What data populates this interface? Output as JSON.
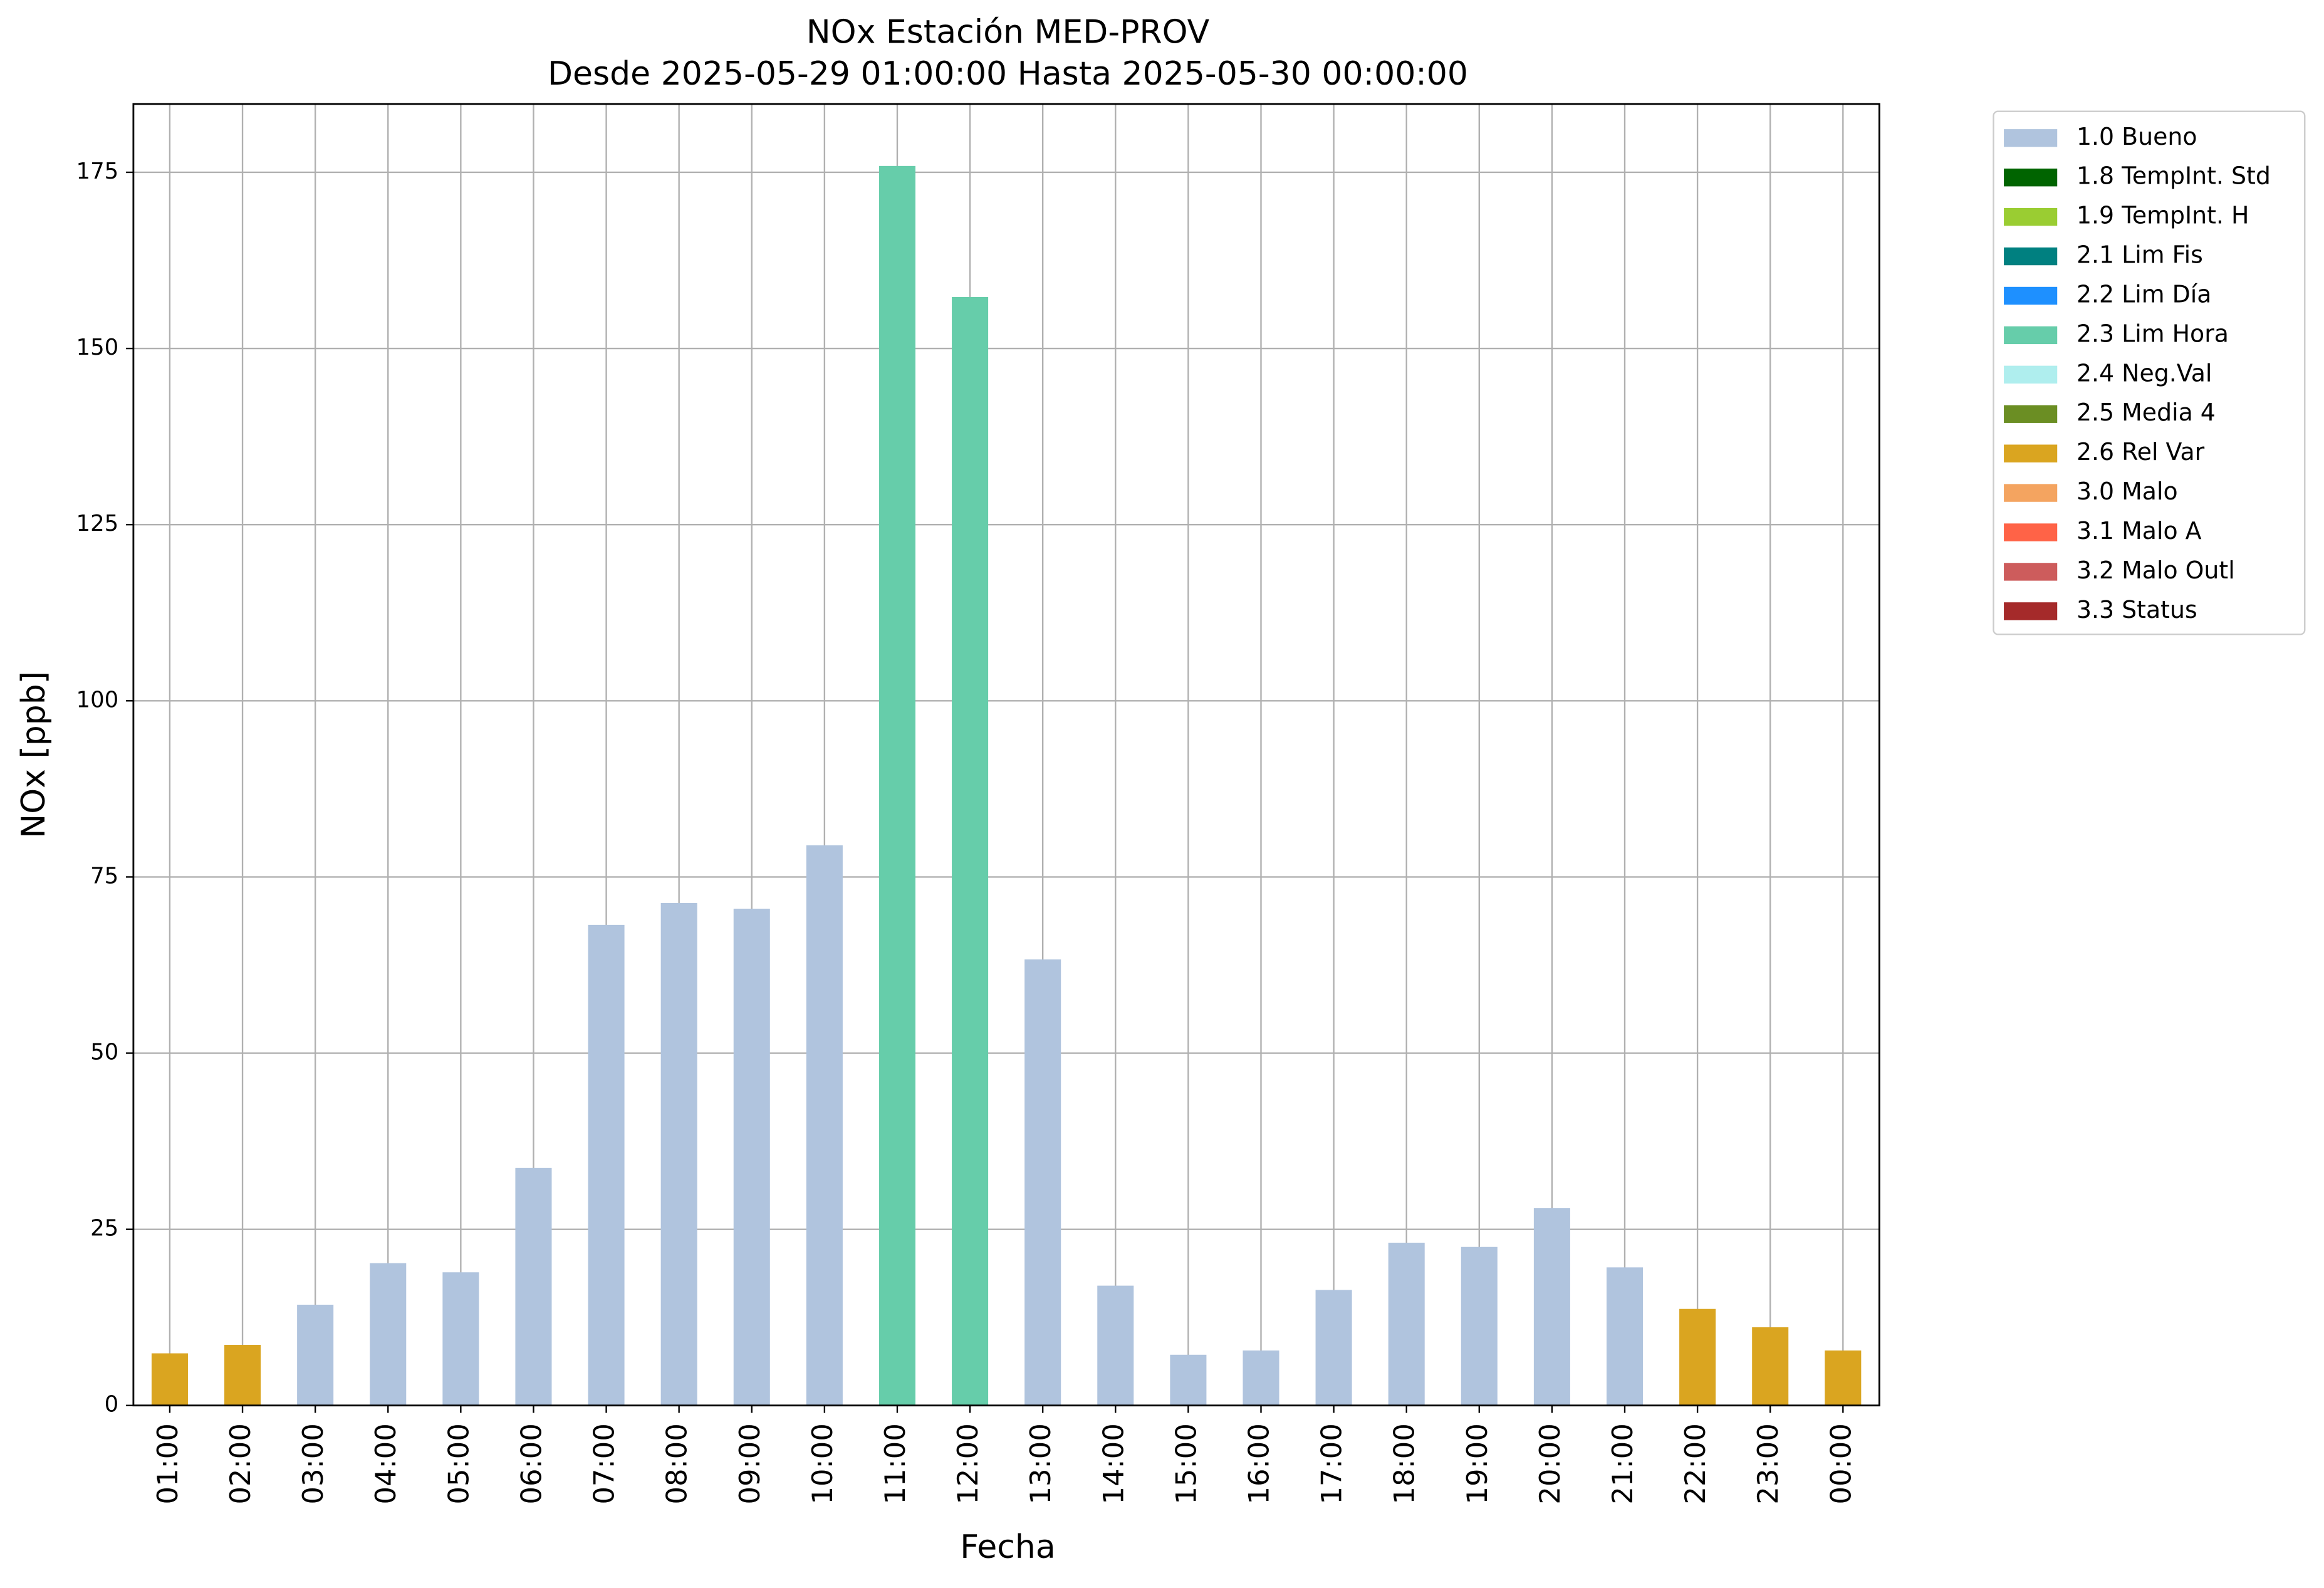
{
  "chart_data": {
    "type": "stacked-bar",
    "title": "NOx Estación MED-PROV",
    "subtitle": "Desde 2025-05-29 01:00:00 Hasta 2025-05-30 00:00:00",
    "x_label": "Fecha",
    "y_label": "NOx [ppb]",
    "categories": [
      "01:00",
      "02:00",
      "03:00",
      "04:00",
      "05:00",
      "06:00",
      "07:00",
      "08:00",
      "09:00",
      "10:00",
      "11:00",
      "12:00",
      "13:00",
      "14:00",
      "15:00",
      "16:00",
      "17:00",
      "18:00",
      "19:00",
      "20:00",
      "21:00",
      "22:00",
      "23:00",
      "00:00"
    ],
    "series": [
      {
        "name": "1.0 Bueno",
        "color": "#b0c4de",
        "values": [
          null,
          null,
          14.3,
          20.2,
          18.9,
          33.7,
          68.2,
          71.3,
          70.5,
          79.5,
          null,
          null,
          63.3,
          17.0,
          7.2,
          7.8,
          16.4,
          23.1,
          22.5,
          28.0,
          19.6,
          null,
          null,
          null
        ]
      },
      {
        "name": "1.8 TempInt. Std",
        "color": "#006400",
        "values": [
          null,
          null,
          null,
          null,
          null,
          null,
          null,
          null,
          null,
          null,
          null,
          null,
          null,
          null,
          null,
          null,
          null,
          null,
          null,
          null,
          null,
          null,
          null,
          null
        ]
      },
      {
        "name": "1.9 TempInt. H",
        "color": "#9acd32",
        "values": [
          null,
          null,
          null,
          null,
          null,
          null,
          null,
          null,
          null,
          null,
          null,
          null,
          null,
          null,
          null,
          null,
          null,
          null,
          null,
          null,
          null,
          null,
          null,
          null
        ]
      },
      {
        "name": "2.1 Lim Fis",
        "color": "#008080",
        "values": [
          null,
          null,
          null,
          null,
          null,
          null,
          null,
          null,
          null,
          null,
          null,
          null,
          null,
          null,
          null,
          null,
          null,
          null,
          null,
          null,
          null,
          null,
          null,
          null
        ]
      },
      {
        "name": "2.2 Lim Día",
        "color": "#1e90ff",
        "values": [
          null,
          null,
          null,
          null,
          null,
          null,
          null,
          null,
          null,
          null,
          null,
          null,
          null,
          null,
          null,
          null,
          null,
          null,
          null,
          null,
          null,
          null,
          null,
          null
        ]
      },
      {
        "name": "2.3 Lim Hora",
        "color": "#66cdaa",
        "values": [
          null,
          null,
          null,
          null,
          null,
          null,
          null,
          null,
          null,
          null,
          175.9,
          157.3,
          null,
          null,
          null,
          null,
          null,
          null,
          null,
          null,
          null,
          null,
          null,
          null
        ]
      },
      {
        "name": "2.4 Neg.Val",
        "color": "#afeeee",
        "values": [
          null,
          null,
          null,
          null,
          null,
          null,
          null,
          null,
          null,
          null,
          null,
          null,
          null,
          null,
          null,
          null,
          null,
          null,
          null,
          null,
          null,
          null,
          null,
          null
        ]
      },
      {
        "name": "2.5 Media 4",
        "color": "#6b8e23",
        "values": [
          null,
          null,
          null,
          null,
          null,
          null,
          null,
          null,
          null,
          null,
          null,
          null,
          null,
          null,
          null,
          null,
          null,
          null,
          null,
          null,
          null,
          null,
          null,
          null
        ]
      },
      {
        "name": "2.6 Rel Var",
        "color": "#daa520",
        "values": [
          7.4,
          8.6,
          null,
          null,
          null,
          null,
          null,
          null,
          null,
          null,
          null,
          null,
          null,
          null,
          null,
          null,
          null,
          null,
          null,
          null,
          null,
          13.7,
          11.1,
          7.8
        ]
      },
      {
        "name": "3.0 Malo",
        "color": "#f4a460",
        "values": [
          null,
          null,
          null,
          null,
          null,
          null,
          null,
          null,
          null,
          null,
          null,
          null,
          null,
          null,
          null,
          null,
          null,
          null,
          null,
          null,
          null,
          null,
          null,
          null
        ]
      },
      {
        "name": "3.1 Malo A",
        "color": "#ff6347",
        "values": [
          null,
          null,
          null,
          null,
          null,
          null,
          null,
          null,
          null,
          null,
          null,
          null,
          null,
          null,
          null,
          null,
          null,
          null,
          null,
          null,
          null,
          null,
          null,
          null
        ]
      },
      {
        "name": "3.2 Malo Outl",
        "color": "#cd5c5c",
        "values": [
          null,
          null,
          null,
          null,
          null,
          null,
          null,
          null,
          null,
          null,
          null,
          null,
          null,
          null,
          null,
          null,
          null,
          null,
          null,
          null,
          null,
          null,
          null,
          null
        ]
      },
      {
        "name": "3.3 Status",
        "color": "#a52a2a",
        "values": [
          null,
          null,
          null,
          null,
          null,
          null,
          null,
          null,
          null,
          null,
          null,
          null,
          null,
          null,
          null,
          null,
          null,
          null,
          null,
          null,
          null,
          null,
          null,
          null
        ]
      }
    ],
    "ylim": [
      0,
      184.7
    ],
    "yticks": [
      0,
      25,
      50,
      75,
      100,
      125,
      150,
      175
    ],
    "grid": true,
    "legend": "outside-right"
  }
}
